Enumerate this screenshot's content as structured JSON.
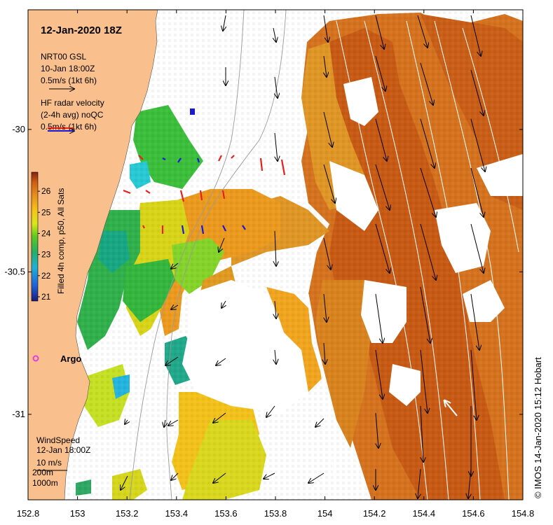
{
  "title": "12-Jan-2020 18Z",
  "legend": {
    "model_title": "NRT00 GSL",
    "model_time": "10-Jan 18:00Z",
    "model_scale": "0.5m/s (1kt 6h)",
    "radar_title": "HF radar velocity",
    "radar_sub": "(2-4h avg) noQC",
    "radar_scale": "0.5m/s (1kt 6h)"
  },
  "colorbar": {
    "label": "Filled 4h comp, p50, All Sats",
    "ticks": [
      "21",
      "22",
      "23",
      "24",
      "25",
      "26"
    ],
    "min": 20.8,
    "max": 26.9
  },
  "wind": {
    "title": "WindSpeed",
    "time": "12-Jan 18:00Z",
    "scale": "10 m/s",
    "iso1": "200m",
    "iso2": "1000m"
  },
  "argo_label": "Argo",
  "credit": "© IMOS 14-Jan-2020 15:12 Hobart",
  "axes": {
    "x_ticks": [
      "152.8",
      "153",
      "153.2",
      "153.4",
      "153.6",
      "153.8",
      "154",
      "154.2",
      "154.4",
      "154.6",
      "154.8"
    ],
    "y_ticks": [
      "-30",
      "-30.5",
      "-31"
    ],
    "xlim": [
      152.8,
      154.8
    ],
    "ylim": [
      -31.3,
      -29.58
    ]
  },
  "colors": {
    "land": "#f9c08d",
    "radar_out": "#e8201c",
    "radar_in": "#1818d0",
    "argo": "#e040e0"
  }
}
